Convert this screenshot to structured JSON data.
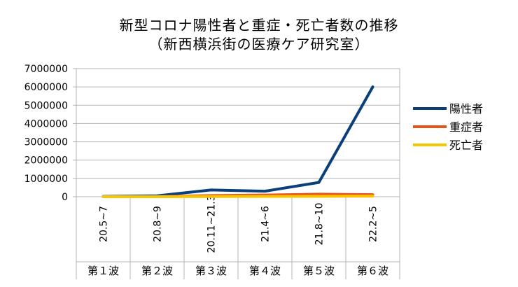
{
  "chart_data": {
    "type": "line",
    "title": "新型コロナ陽性者と重症・死亡者数の推移",
    "subtitle": "（新西横浜街の医療ケア研究室）",
    "categories": [
      "20.5~7",
      "20.8~9",
      "20.11~21.3",
      "21.4~6",
      "21.8~10",
      "22.2~5"
    ],
    "category_display": [
      "20.5~7",
      "20.8~9",
      "20.11~21.3",
      "21.4~6",
      "21.8~10",
      "22.2~5"
    ],
    "groups": [
      "第１波",
      "第２波",
      "第３波",
      "第４波",
      "第５波",
      "第６波"
    ],
    "ylim": [
      0,
      7000000
    ],
    "yticks": [
      0,
      1000000,
      2000000,
      3000000,
      4000000,
      5000000,
      6000000,
      7000000
    ],
    "grid": true,
    "legend_position": "right",
    "series": [
      {
        "name": "陽性者",
        "color": "#0a3f7a",
        "values": [
          16000,
          50000,
          370000,
          300000,
          780000,
          6000000
        ]
      },
      {
        "name": "重症者",
        "color": "#e8541e",
        "values": [
          1000,
          2000,
          60000,
          90000,
          140000,
          110000
        ]
      },
      {
        "name": "死亡者",
        "color": "#f6c600",
        "values": [
          800,
          1200,
          8000,
          12000,
          20000,
          30000
        ]
      }
    ]
  }
}
